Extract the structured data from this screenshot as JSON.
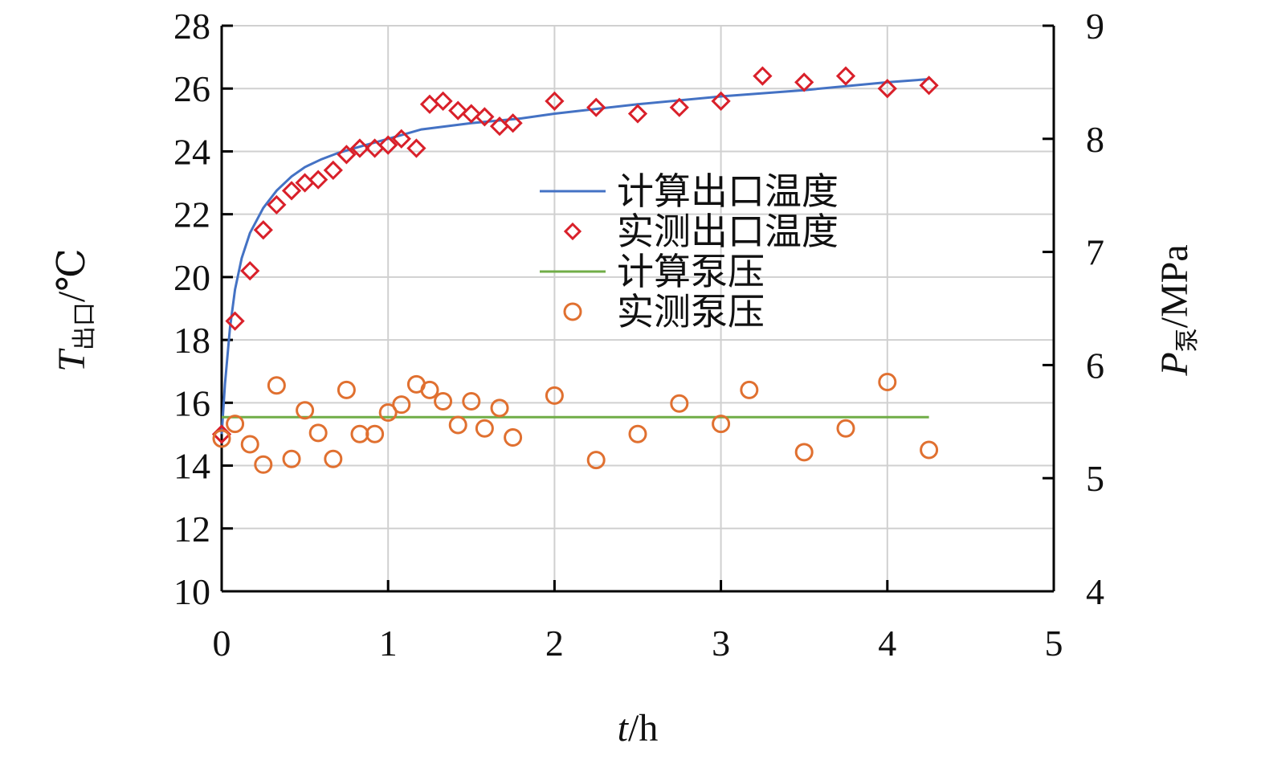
{
  "chart_data": {
    "type": "scatter",
    "x_axis": {
      "label_main": "t",
      "label_unit": "/h",
      "range": [
        0,
        5
      ],
      "ticks": [
        "0",
        "1",
        "2",
        "3",
        "4",
        "5"
      ]
    },
    "y_left": {
      "label_main": "T",
      "label_sub": "出口",
      "label_unit": "/℃",
      "range": [
        10,
        28
      ],
      "ticks": [
        "10",
        "12",
        "14",
        "16",
        "18",
        "20",
        "22",
        "24",
        "26",
        "28"
      ]
    },
    "y_right": {
      "label_main": "P",
      "label_sub": "泵",
      "label_unit": "/MPa",
      "range": [
        4,
        9
      ],
      "ticks": [
        "4",
        "5",
        "6",
        "7",
        "8",
        "9"
      ]
    },
    "grid": true,
    "legend_position": "center-right",
    "series": [
      {
        "name": "计算出口温度",
        "kind": "line",
        "axis": "left",
        "color": "#4472c4",
        "x": [
          0,
          0.02,
          0.05,
          0.08,
          0.12,
          0.17,
          0.25,
          0.33,
          0.42,
          0.5,
          0.6,
          0.7,
          0.83,
          1.0,
          1.2,
          1.5,
          1.8,
          2.0,
          2.5,
          3.0,
          3.5,
          4.0,
          4.25
        ],
        "y": [
          15.0,
          16.6,
          18.4,
          19.6,
          20.6,
          21.4,
          22.2,
          22.75,
          23.2,
          23.5,
          23.75,
          23.95,
          24.15,
          24.4,
          24.7,
          24.9,
          25.05,
          25.2,
          25.5,
          25.75,
          25.95,
          26.2,
          26.3
        ]
      },
      {
        "name": "实测出口温度",
        "kind": "marker",
        "marker": "diamond",
        "axis": "left",
        "color": "#d9202a",
        "x": [
          0.0,
          0.08,
          0.17,
          0.25,
          0.33,
          0.42,
          0.5,
          0.58,
          0.67,
          0.75,
          0.83,
          0.92,
          1.0,
          1.08,
          1.17,
          1.25,
          1.33,
          1.42,
          1.5,
          1.58,
          1.67,
          1.75,
          2.0,
          2.25,
          2.5,
          2.75,
          3.0,
          3.25,
          3.5,
          3.75,
          4.0,
          4.25
        ],
        "y": [
          15.0,
          18.6,
          20.2,
          21.5,
          22.3,
          22.75,
          23.0,
          23.1,
          23.4,
          23.9,
          24.1,
          24.1,
          24.2,
          24.4,
          24.1,
          25.5,
          25.6,
          25.3,
          25.2,
          25.1,
          24.8,
          24.9,
          25.6,
          25.4,
          25.2,
          25.4,
          25.6,
          26.4,
          26.2,
          26.4,
          26.0,
          26.1
        ]
      },
      {
        "name": "计算泵压",
        "kind": "line",
        "axis": "right",
        "color": "#70ad47",
        "x": [
          0,
          4.25
        ],
        "y": [
          5.54,
          5.54
        ]
      },
      {
        "name": "实测泵压",
        "kind": "marker",
        "marker": "circle",
        "axis": "right",
        "color": "#e07030",
        "x": [
          0.0,
          0.08,
          0.17,
          0.25,
          0.33,
          0.42,
          0.5,
          0.58,
          0.67,
          0.75,
          0.83,
          0.92,
          1.0,
          1.08,
          1.17,
          1.25,
          1.33,
          1.42,
          1.5,
          1.58,
          1.67,
          1.75,
          2.0,
          2.25,
          2.5,
          2.75,
          3.0,
          3.17,
          3.5,
          3.75,
          4.0,
          4.25
        ],
        "y": [
          5.35,
          5.48,
          5.3,
          5.12,
          5.82,
          5.17,
          5.6,
          5.4,
          5.17,
          5.78,
          5.39,
          5.39,
          5.58,
          5.65,
          5.83,
          5.78,
          5.68,
          5.47,
          5.68,
          5.44,
          5.62,
          5.36,
          5.73,
          5.16,
          5.39,
          5.66,
          5.48,
          5.78,
          5.23,
          5.44,
          5.85,
          5.25
        ]
      }
    ]
  }
}
